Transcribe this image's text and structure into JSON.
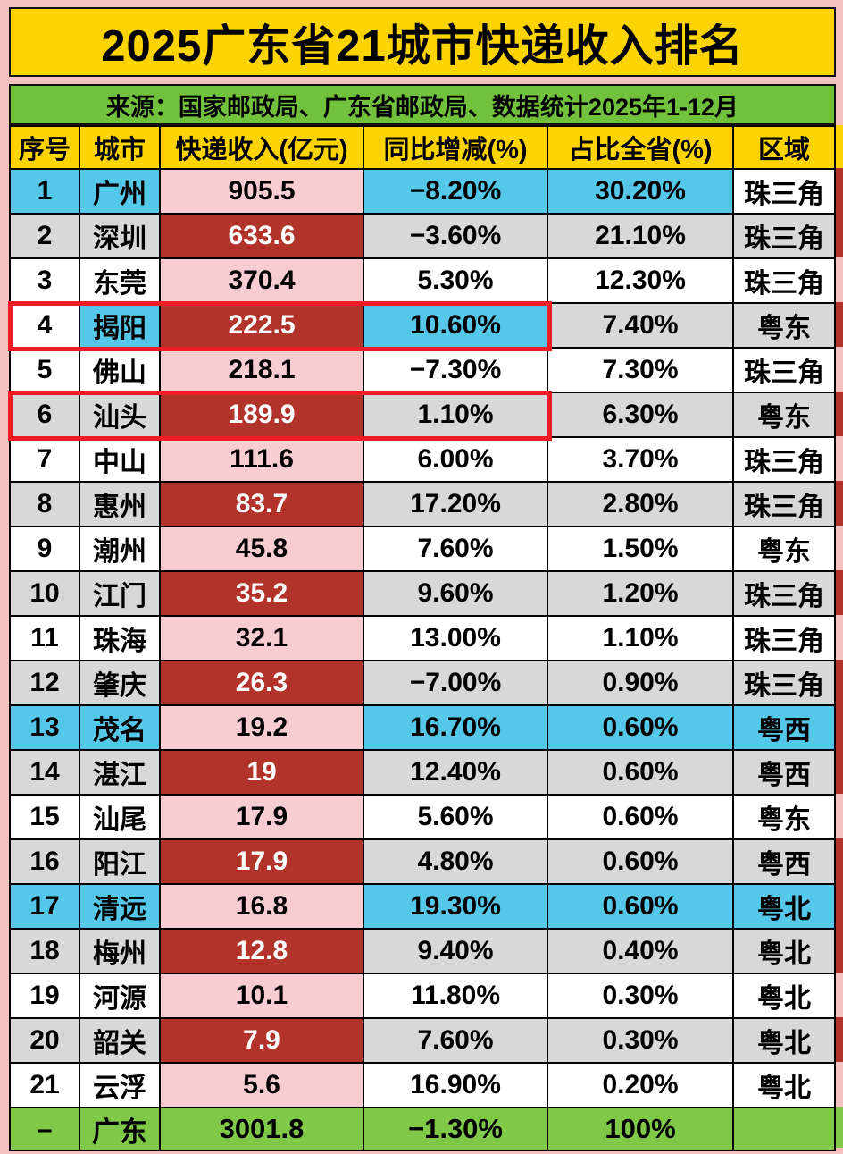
{
  "title": "2025广东省21城市快递收入排名",
  "source": "来源：国家邮政局、广东省邮政局、数据统计2025年1-12月",
  "colors": {
    "yellow": "#fcd303",
    "green_source": "#72c13c",
    "green_total": "#7fc848",
    "cyan": "#55c8ea",
    "gray": "#d8d8d8",
    "pink_bg": "#f4c2c0",
    "pink_cell": "#f8cdd2",
    "dark_red": "#b2332a",
    "highlight_red": "#ee1d25"
  },
  "chart_data": {
    "type": "table",
    "title": "2025广东省21城市快递收入排名",
    "columns": [
      "序号",
      "城市",
      "快递收入(亿元)",
      "同比增减(%)",
      "占比全省(%)",
      "区域"
    ],
    "rows": [
      {
        "rank": "1",
        "city": "广州",
        "income": "905.5",
        "yoy": "−8.20%",
        "share": "30.20%",
        "region": "珠三角",
        "cells_bg": [
          "cyan",
          "cyan",
          "pink",
          "cyan",
          "cyan",
          "white"
        ],
        "redbox": false,
        "edge": "dark"
      },
      {
        "rank": "2",
        "city": "深圳",
        "income": "633.6",
        "yoy": "−3.60%",
        "share": "21.10%",
        "region": "珠三角",
        "cells_bg": [
          "gray",
          "gray",
          "dark",
          "gray",
          "gray",
          "gray"
        ],
        "redbox": false,
        "edge": "dark"
      },
      {
        "rank": "3",
        "city": "东莞",
        "income": "370.4",
        "yoy": "5.30%",
        "share": "12.30%",
        "region": "珠三角",
        "cells_bg": [
          "white",
          "white",
          "pink",
          "white",
          "white",
          "white"
        ],
        "redbox": false,
        "edge": "pink"
      },
      {
        "rank": "4",
        "city": "揭阳",
        "income": "222.5",
        "yoy": "10.60%",
        "share": "7.40%",
        "region": "粤东",
        "cells_bg": [
          "white",
          "cyan",
          "dark",
          "cyan",
          "gray",
          "gray"
        ],
        "redbox": true,
        "edge": "dark"
      },
      {
        "rank": "5",
        "city": "佛山",
        "income": "218.1",
        "yoy": "−7.30%",
        "share": "7.30%",
        "region": "珠三角",
        "cells_bg": [
          "white",
          "white",
          "pink",
          "white",
          "white",
          "white"
        ],
        "redbox": false,
        "edge": "pink"
      },
      {
        "rank": "6",
        "city": "汕头",
        "income": "189.9",
        "yoy": "1.10%",
        "share": "6.30%",
        "region": "粤东",
        "cells_bg": [
          "gray",
          "gray",
          "dark",
          "gray",
          "gray",
          "gray"
        ],
        "redbox": true,
        "edge": "dark"
      },
      {
        "rank": "7",
        "city": "中山",
        "income": "111.6",
        "yoy": "6.00%",
        "share": "3.70%",
        "region": "珠三角",
        "cells_bg": [
          "white",
          "white",
          "pink",
          "white",
          "white",
          "white"
        ],
        "redbox": false,
        "edge": "pink"
      },
      {
        "rank": "8",
        "city": "惠州",
        "income": "83.7",
        "yoy": "17.20%",
        "share": "2.80%",
        "region": "珠三角",
        "cells_bg": [
          "gray",
          "gray",
          "dark",
          "gray",
          "gray",
          "gray"
        ],
        "redbox": false,
        "edge": "dark"
      },
      {
        "rank": "9",
        "city": "潮州",
        "income": "45.8",
        "yoy": "7.60%",
        "share": "1.50%",
        "region": "粤东",
        "cells_bg": [
          "white",
          "white",
          "pink",
          "white",
          "white",
          "white"
        ],
        "redbox": false,
        "edge": "pink"
      },
      {
        "rank": "10",
        "city": "江门",
        "income": "35.2",
        "yoy": "9.60%",
        "share": "1.20%",
        "region": "珠三角",
        "cells_bg": [
          "gray",
          "gray",
          "dark",
          "gray",
          "gray",
          "gray"
        ],
        "redbox": false,
        "edge": "dark"
      },
      {
        "rank": "11",
        "city": "珠海",
        "income": "32.1",
        "yoy": "13.00%",
        "share": "1.10%",
        "region": "珠三角",
        "cells_bg": [
          "white",
          "white",
          "pink",
          "white",
          "white",
          "white"
        ],
        "redbox": false,
        "edge": "pink"
      },
      {
        "rank": "12",
        "city": "肇庆",
        "income": "26.3",
        "yoy": "−7.00%",
        "share": "0.90%",
        "region": "珠三角",
        "cells_bg": [
          "gray",
          "gray",
          "dark",
          "gray",
          "gray",
          "gray"
        ],
        "redbox": false,
        "edge": "dark"
      },
      {
        "rank": "13",
        "city": "茂名",
        "income": "19.2",
        "yoy": "16.70%",
        "share": "0.60%",
        "region": "粤西",
        "cells_bg": [
          "cyan",
          "cyan",
          "pink",
          "cyan",
          "cyan",
          "cyan"
        ],
        "redbox": false,
        "edge": "dark"
      },
      {
        "rank": "14",
        "city": "湛江",
        "income": "19",
        "yoy": "12.40%",
        "share": "0.60%",
        "region": "粤西",
        "cells_bg": [
          "gray",
          "gray",
          "dark",
          "gray",
          "gray",
          "gray"
        ],
        "redbox": false,
        "edge": "dark"
      },
      {
        "rank": "15",
        "city": "汕尾",
        "income": "17.9",
        "yoy": "5.60%",
        "share": "0.60%",
        "region": "粤东",
        "cells_bg": [
          "white",
          "white",
          "pink",
          "white",
          "white",
          "white"
        ],
        "redbox": false,
        "edge": "pink"
      },
      {
        "rank": "16",
        "city": "阳江",
        "income": "17.9",
        "yoy": "4.80%",
        "share": "0.60%",
        "region": "粤西",
        "cells_bg": [
          "gray",
          "gray",
          "dark",
          "gray",
          "gray",
          "gray"
        ],
        "redbox": false,
        "edge": "dark"
      },
      {
        "rank": "17",
        "city": "清远",
        "income": "16.8",
        "yoy": "19.30%",
        "share": "0.60%",
        "region": "粤北",
        "cells_bg": [
          "cyan",
          "cyan",
          "pink",
          "cyan",
          "cyan",
          "cyan"
        ],
        "redbox": false,
        "edge": "dark"
      },
      {
        "rank": "18",
        "city": "梅州",
        "income": "12.8",
        "yoy": "9.40%",
        "share": "0.40%",
        "region": "粤北",
        "cells_bg": [
          "gray",
          "gray",
          "dark",
          "gray",
          "gray",
          "gray"
        ],
        "redbox": false,
        "edge": "dark"
      },
      {
        "rank": "19",
        "city": "河源",
        "income": "10.1",
        "yoy": "11.80%",
        "share": "0.30%",
        "region": "粤北",
        "cells_bg": [
          "white",
          "white",
          "pink",
          "white",
          "white",
          "white"
        ],
        "redbox": false,
        "edge": "pink"
      },
      {
        "rank": "20",
        "city": "韶关",
        "income": "7.9",
        "yoy": "7.60%",
        "share": "0.30%",
        "region": "粤北",
        "cells_bg": [
          "gray",
          "gray",
          "dark",
          "gray",
          "gray",
          "gray"
        ],
        "redbox": false,
        "edge": "dark"
      },
      {
        "rank": "21",
        "city": "云浮",
        "income": "5.6",
        "yoy": "16.90%",
        "share": "0.20%",
        "region": "粤北",
        "cells_bg": [
          "white",
          "white",
          "pink",
          "white",
          "white",
          "white"
        ],
        "redbox": false,
        "edge": "pink"
      }
    ],
    "total": {
      "rank": "–",
      "city": "广东",
      "income": "3001.8",
      "yoy": "−1.30%",
      "share": "100%",
      "region": "",
      "cells_bg": [
        "green",
        "green",
        "green",
        "green",
        "green",
        "green"
      ],
      "redbox": false,
      "edge": "green"
    }
  }
}
